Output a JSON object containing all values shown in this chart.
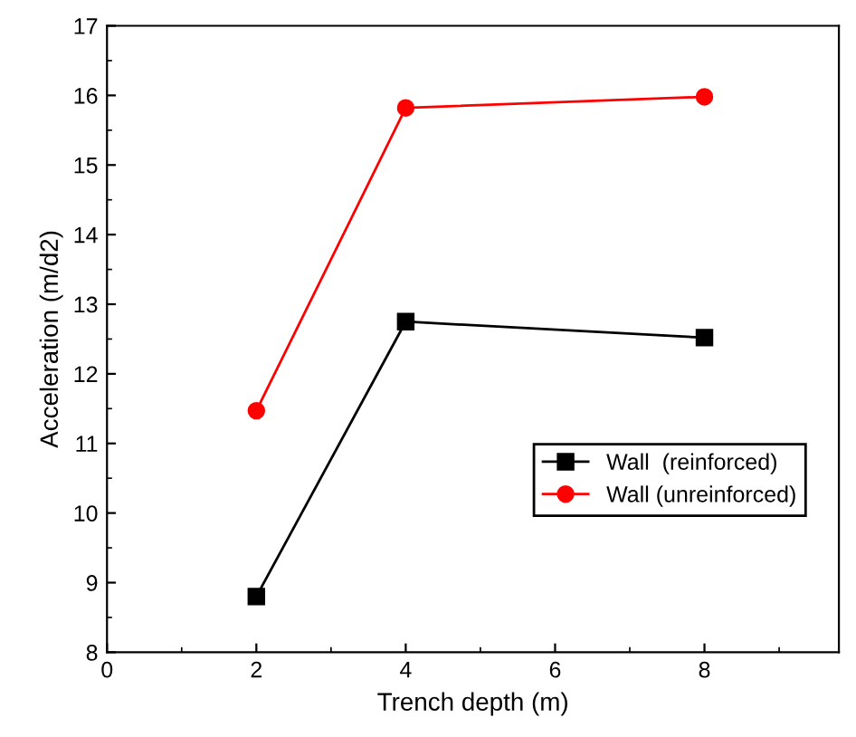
{
  "chart_data": {
    "type": "line",
    "xlabel": "Trench depth (m)",
    "ylabel": "Acceleration (m/d2)",
    "x": [
      2,
      4,
      8
    ],
    "series": [
      {
        "name": "Wall  (reinforced)",
        "color": "#000000",
        "values": [
          8.8,
          12.75,
          12.52
        ],
        "marker": "square"
      },
      {
        "name": "Wall (unreinforced)",
        "color": "#ff0000",
        "values": [
          11.47,
          15.82,
          15.98
        ],
        "marker": "circle"
      }
    ],
    "xlim": [
      0,
      9.8
    ],
    "ylim": [
      8,
      17
    ],
    "xticks": [
      0,
      2,
      4,
      6,
      8
    ],
    "yticks": [
      8,
      9,
      10,
      11,
      12,
      13,
      14,
      15,
      16,
      17
    ],
    "grid": false,
    "legend": "center right",
    "line_style": "solid"
  }
}
